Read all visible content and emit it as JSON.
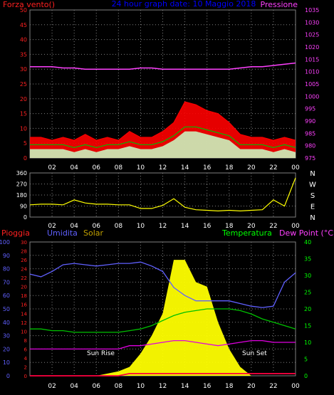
{
  "title": "24 hour graph date: 10 Maggio 2018",
  "hours": [
    "02",
    "04",
    "06",
    "08",
    "10",
    "12",
    "14",
    "16",
    "18",
    "20",
    "22",
    "00"
  ],
  "colors": {
    "frame": "#808080",
    "grid": "#808080",
    "wind_gust": "#ff0000",
    "wind_avg": "#c8ffc8",
    "wind_trend": "#00c000",
    "pressure": "#ff40ff",
    "direction": "#ffff00",
    "rain": "#ff0040",
    "humidity": "#6060ff",
    "solar": "#ffff00",
    "temperature": "#00c000",
    "dewpoint": "#e000e0",
    "axis_left": "#ff2020",
    "axis_pressure": "#ff40ff",
    "axis_rain_main": "#ff2020",
    "axis_hum": "#6060ff",
    "axis_temp": "#00ff00"
  },
  "panel1": {
    "label_left": "Forza vento()",
    "label_right": "Pressione",
    "left_ticks": [
      "0",
      "5",
      "10",
      "15",
      "20",
      "25",
      "30",
      "35",
      "40",
      "45",
      "50"
    ],
    "right_ticks": [
      "975",
      "980",
      "985",
      "990",
      "995",
      "1000",
      "1005",
      "1010",
      "1015",
      "1020",
      "1025",
      "1030",
      "1035"
    ]
  },
  "panel2": {
    "left_ticks": [
      "0",
      "90",
      "180",
      "270",
      "360"
    ],
    "compass": [
      "N",
      "W",
      "S",
      "E",
      "N"
    ]
  },
  "panel3": {
    "label_rain": "Pioggia",
    "label_hum": "Umidita",
    "label_solar": "Solar",
    "label_temp": "Temperatura",
    "label_dew": "Dew Point (°C)",
    "hum_ticks": [
      "0",
      "10",
      "20",
      "30",
      "40",
      "50",
      "60",
      "70",
      "80",
      "90",
      "100"
    ],
    "rain_ticks": [
      "0",
      "2",
      "4",
      "6",
      "8",
      "10",
      "12",
      "14",
      "16",
      "18",
      "20",
      "22",
      "24",
      "26",
      "28",
      "30"
    ],
    "temp_ticks": [
      "0",
      "5",
      "10",
      "15",
      "20",
      "25",
      "30",
      "35",
      "40"
    ],
    "sunrise": "Sun Rise",
    "sunset": "Sun Set"
  },
  "chart_data": [
    {
      "type": "line",
      "name": "wind and pressure",
      "x_hours": [
        0,
        1,
        2,
        3,
        4,
        5,
        6,
        7,
        8,
        9,
        10,
        11,
        12,
        13,
        14,
        15,
        16,
        17,
        18,
        19,
        20,
        21,
        22,
        23,
        24
      ],
      "series": [
        {
          "name": "gust",
          "values": [
            7,
            7,
            6,
            7,
            6,
            8,
            6,
            7,
            6,
            9,
            7,
            7,
            9,
            12,
            19,
            18,
            16,
            15,
            12,
            8,
            7,
            7,
            6,
            7,
            6
          ]
        },
        {
          "name": "average",
          "values": [
            3,
            3,
            3,
            3,
            2,
            3,
            2,
            3,
            3,
            4,
            3,
            3,
            4,
            6,
            9,
            9,
            8,
            7,
            6,
            3,
            3,
            3,
            2,
            3,
            2
          ]
        },
        {
          "name": "pressure",
          "axis": "right",
          "values": [
            1012,
            1012,
            1012,
            1011.5,
            1011.5,
            1011,
            1011,
            1011,
            1011,
            1011,
            1011.5,
            1011.5,
            1011,
            1011,
            1011,
            1011,
            1011,
            1011,
            1011,
            1011.5,
            1012,
            1012,
            1012.5,
            1013,
            1013.5
          ]
        }
      ],
      "ylim": [
        0,
        50
      ],
      "ylim_right": [
        975,
        1035
      ]
    },
    {
      "type": "line",
      "name": "wind direction",
      "x_hours": [
        0,
        1,
        2,
        3,
        4,
        5,
        6,
        7,
        8,
        9,
        10,
        11,
        12,
        13,
        14,
        15,
        16,
        17,
        18,
        19,
        20,
        21,
        22,
        23,
        24
      ],
      "series": [
        {
          "name": "direction",
          "values": [
            100,
            105,
            105,
            100,
            140,
            115,
            105,
            105,
            100,
            100,
            70,
            70,
            95,
            150,
            80,
            60,
            55,
            50,
            55,
            50,
            55,
            60,
            140,
            90,
            320
          ]
        }
      ],
      "ylim": [
        0,
        360
      ]
    },
    {
      "type": "line",
      "name": "rain, humidity, solar, temperature, dew point",
      "x_hours": [
        0,
        1,
        2,
        3,
        4,
        5,
        6,
        7,
        8,
        9,
        10,
        11,
        12,
        13,
        14,
        15,
        16,
        17,
        18,
        19,
        20,
        21,
        22,
        23,
        24
      ],
      "series": [
        {
          "name": "humidity",
          "axis": "hum",
          "values": [
            76,
            74,
            78,
            83,
            84,
            83,
            82,
            83,
            84,
            84,
            85,
            82,
            78,
            66,
            60,
            56,
            56,
            56,
            56,
            54,
            52,
            51,
            52,
            70,
            77
          ]
        },
        {
          "name": "solar",
          "axis": "rain",
          "values": [
            0,
            0,
            0,
            0,
            0,
            0,
            0,
            0.5,
            1,
            2,
            5,
            9,
            14,
            26,
            26,
            21,
            20,
            12,
            6,
            2,
            0,
            0,
            0,
            0,
            0
          ]
        },
        {
          "name": "temperature",
          "axis": "temp",
          "values": [
            14,
            14,
            13.5,
            13.5,
            13,
            13,
            13,
            13,
            13,
            13.5,
            14,
            15,
            16.5,
            18,
            19,
            19.5,
            20,
            20,
            20,
            19.5,
            18.5,
            17,
            16,
            15,
            14
          ]
        },
        {
          "name": "dewpoint",
          "axis": "temp",
          "values": [
            8,
            8,
            8,
            8,
            8,
            8,
            8,
            8,
            8,
            9,
            9,
            9.5,
            10,
            10.5,
            10.5,
            10,
            9.5,
            9,
            9.5,
            10,
            10.5,
            10.5,
            10,
            10,
            10
          ]
        },
        {
          "name": "rain",
          "axis": "rain",
          "values": [
            0,
            0,
            0,
            0,
            0,
            0,
            0,
            0,
            0,
            0.5,
            0.5,
            0.5,
            0.5,
            0.5,
            0.5,
            0.5,
            0.5,
            0.5,
            0.5,
            0.5,
            0.5,
            0.5,
            0.5,
            0.5,
            0.5
          ]
        }
      ],
      "ylim_hum": [
        0,
        100
      ],
      "ylim_rain": [
        0,
        30
      ],
      "ylim_temp": [
        0,
        40
      ]
    }
  ]
}
